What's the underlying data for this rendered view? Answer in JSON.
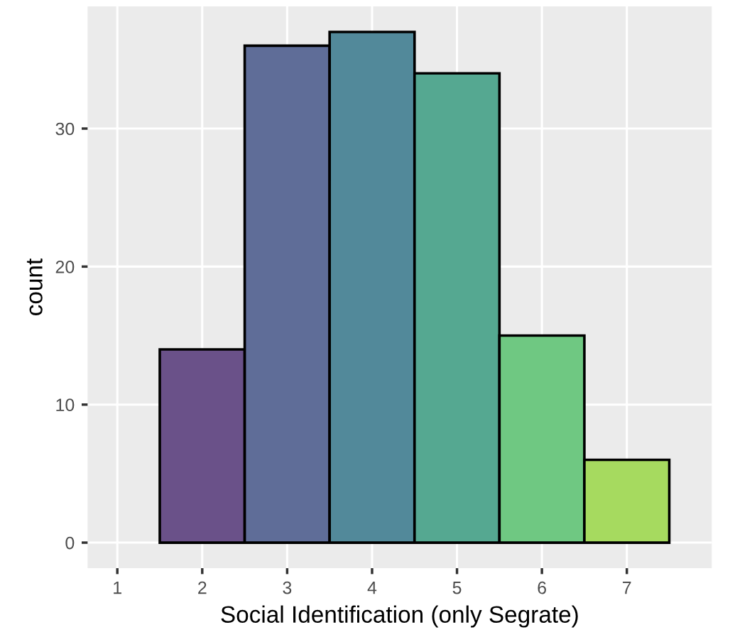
{
  "chart_data": {
    "type": "histogram",
    "xlabel": "Social Identification (only Segrate)",
    "ylabel": "count",
    "bins": [
      1.5,
      2.5,
      3.5,
      4.5,
      5.5,
      6.5,
      7.5
    ],
    "values": [
      14,
      36,
      37,
      34,
      15,
      6
    ],
    "colors": [
      "#6a5189",
      "#5f6d98",
      "#52899a",
      "#55a891",
      "#6fc882",
      "#a6da5f"
    ],
    "xlim": [
      0.65,
      8.0
    ],
    "xticks": [
      1,
      2,
      3,
      4,
      5,
      6,
      7
    ],
    "ylim": [
      -1.85,
      38.85
    ],
    "yticks": [
      0,
      10,
      20,
      30
    ],
    "grid": true
  }
}
